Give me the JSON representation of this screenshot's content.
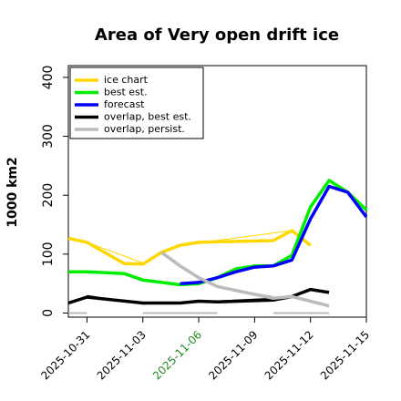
{
  "chart_data": {
    "type": "line",
    "title": "Area of Very open drift ice",
    "ylabel": "1000 km2",
    "xlabel": "",
    "ylim": [
      -7,
      420
    ],
    "yticks": [
      0,
      100,
      200,
      300,
      400
    ],
    "ytick_labels": [
      "0",
      "100",
      "200",
      "300",
      "400"
    ],
    "xlim": [
      "2025-10-30",
      "2025-11-15"
    ],
    "xticks": [
      "2025-10-31",
      "2025-11-03",
      "2025-11-06",
      "2025-11-09",
      "2025-11-12",
      "2025-11-15"
    ],
    "xtick_labels": [
      "2025-10-31",
      "2025-11-03",
      "2025-11-06",
      "2025-11-09",
      "2025-11-12",
      "2025-11-15"
    ],
    "xtick_colors": [
      "#000000",
      "#000000",
      "#228B22",
      "#000000",
      "#000000",
      "#000000"
    ],
    "grid": false,
    "legend_position": "top-left",
    "series": [
      {
        "name": "ice chart",
        "color": "#FFD700",
        "style": "thick",
        "x": [
          "2025-10-30",
          "2025-10-31",
          "2025-11-02",
          "2025-11-03",
          "2025-11-04",
          "2025-11-05",
          "2025-11-06",
          "2025-11-07",
          "2025-11-10",
          "2025-11-11",
          "2025-11-12"
        ],
        "y": [
          127,
          120,
          84,
          83,
          103,
          115,
          120,
          121,
          123,
          140,
          115
        ]
      },
      {
        "name": "",
        "color": "#FFD700",
        "style": "thin",
        "x": [
          "2025-10-31",
          "2025-11-03",
          "2025-11-05",
          "2025-11-11"
        ],
        "y": [
          120,
          85,
          115,
          140
        ]
      },
      {
        "name": "best est.",
        "color": "#00EE00",
        "style": "thick",
        "x": [
          "2025-10-30",
          "2025-10-31",
          "2025-11-02",
          "2025-11-03",
          "2025-11-04",
          "2025-11-05",
          "2025-11-06",
          "2025-11-07",
          "2025-11-08",
          "2025-11-09",
          "2025-11-10",
          "2025-11-11",
          "2025-11-12",
          "2025-11-13",
          "2025-11-14",
          "2025-11-15"
        ],
        "y": [
          70,
          70,
          67,
          56,
          52,
          48,
          50,
          60,
          75,
          80,
          80,
          98,
          180,
          225,
          205,
          175
        ]
      },
      {
        "name": "forecast",
        "color": "#0000FF",
        "style": "thick",
        "x": [
          "2025-11-05",
          "2025-11-06",
          "2025-11-07",
          "2025-11-08",
          "2025-11-09",
          "2025-11-10",
          "2025-11-11",
          "2025-11-12",
          "2025-11-13",
          "2025-11-14",
          "2025-11-15"
        ],
        "y": [
          50,
          52,
          60,
          70,
          78,
          80,
          90,
          160,
          215,
          205,
          163
        ]
      },
      {
        "name": "overlap, best est.",
        "color": "#000000",
        "style": "thick",
        "x": [
          "2025-10-30",
          "2025-10-31",
          "2025-11-03",
          "2025-11-04",
          "2025-11-05",
          "2025-11-06",
          "2025-11-07",
          "2025-11-10",
          "2025-11-11",
          "2025-11-12",
          "2025-11-13"
        ],
        "y": [
          17,
          27,
          17,
          17,
          17,
          20,
          19,
          22,
          28,
          40,
          35
        ]
      },
      {
        "name": "",
        "color": "#000000",
        "style": "thin",
        "x": [
          "2025-10-31",
          "2025-11-03",
          "2025-11-10"
        ],
        "y": [
          30,
          15,
          25
        ]
      },
      {
        "name": "overlap, persist.",
        "color": "#BBBBBB",
        "style": "thick",
        "x": [
          "2025-11-04",
          "2025-11-05",
          "2025-11-06",
          "2025-11-07",
          "2025-11-10",
          "2025-11-11",
          "2025-11-12",
          "2025-11-13"
        ],
        "y": [
          103,
          80,
          60,
          45,
          25,
          28,
          20,
          12
        ]
      },
      {
        "name": "",
        "color": "#BBBBBB",
        "style": "thin",
        "x": [
          "2025-11-07",
          "2025-11-10"
        ],
        "y": [
          45,
          28
        ]
      },
      {
        "name": "",
        "color": "#BBBBBB",
        "style": "flat",
        "x": [
          "2025-10-30",
          "2025-10-31"
        ],
        "y": [
          0,
          0
        ]
      },
      {
        "name": "",
        "color": "#BBBBBB",
        "style": "flat",
        "x": [
          "2025-11-03",
          "2025-11-07"
        ],
        "y": [
          0,
          0
        ]
      },
      {
        "name": "",
        "color": "#BBBBBB",
        "style": "flat",
        "x": [
          "2025-11-10",
          "2025-11-13"
        ],
        "y": [
          0,
          0
        ]
      }
    ]
  }
}
